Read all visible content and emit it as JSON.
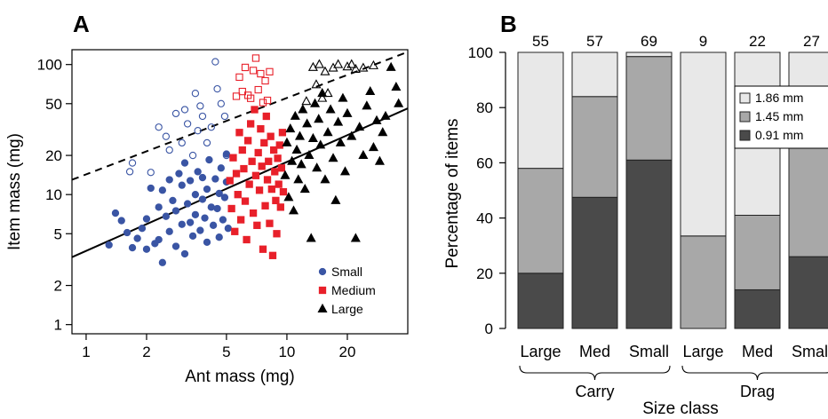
{
  "chart_data": [
    {
      "panel": "A",
      "type": "scatter",
      "xlabel": "Ant mass (mg)",
      "ylabel": "Item mass (mg)",
      "x_scale": "log",
      "y_scale": "log",
      "xlim": [
        0.85,
        40
      ],
      "ylim": [
        0.85,
        130
      ],
      "x_ticks": [
        1,
        2,
        5,
        10,
        20
      ],
      "x_tick_labels": [
        "1",
        "2",
        "5",
        "10",
        "20"
      ],
      "y_ticks": [
        1,
        2,
        5,
        10,
        20,
        50,
        100
      ],
      "y_tick_labels": [
        "1",
        "2",
        "5",
        "10",
        "20",
        "50",
        "100"
      ],
      "legend": {
        "placement": "bottom-right",
        "entries": [
          "Small",
          "Medium",
          "Large"
        ]
      },
      "colors": {
        "Small": "#3a55a4",
        "Medium": "#e8202a",
        "Large": "#000000"
      },
      "series": [
        {
          "name": "Small",
          "marker": "filled-circle",
          "points": [
            [
              1.3,
              4.1
            ],
            [
              1.4,
              7.2
            ],
            [
              1.5,
              6.3
            ],
            [
              1.6,
              5.1
            ],
            [
              1.7,
              3.9
            ],
            [
              1.8,
              4.6
            ],
            [
              1.9,
              5.5
            ],
            [
              2.0,
              3.8
            ],
            [
              2.0,
              6.5
            ],
            [
              2.1,
              11.2
            ],
            [
              2.2,
              4.2
            ],
            [
              2.3,
              8.0
            ],
            [
              2.3,
              4.5
            ],
            [
              2.4,
              10.8
            ],
            [
              2.4,
              3.0
            ],
            [
              2.5,
              6.8
            ],
            [
              2.6,
              5.2
            ],
            [
              2.6,
              13.0
            ],
            [
              2.7,
              9.0
            ],
            [
              2.8,
              4.0
            ],
            [
              2.8,
              7.5
            ],
            [
              2.9,
              14.5
            ],
            [
              3.0,
              5.9
            ],
            [
              3.0,
              11.8
            ],
            [
              3.1,
              3.5
            ],
            [
              3.1,
              17.5
            ],
            [
              3.2,
              8.5
            ],
            [
              3.3,
              6.1
            ],
            [
              3.3,
              12.8
            ],
            [
              3.4,
              4.8
            ],
            [
              3.5,
              10.0
            ],
            [
              3.5,
              7.0
            ],
            [
              3.6,
              15.0
            ],
            [
              3.7,
              5.3
            ],
            [
              3.8,
              9.2
            ],
            [
              3.8,
              13.5
            ],
            [
              3.9,
              6.6
            ],
            [
              4.0,
              4.3
            ],
            [
              4.0,
              11.0
            ],
            [
              4.1,
              18.5
            ],
            [
              4.2,
              8.0
            ],
            [
              4.3,
              5.8
            ],
            [
              4.4,
              13.2
            ],
            [
              4.5,
              7.8
            ],
            [
              4.6,
              10.2
            ],
            [
              4.6,
              4.7
            ],
            [
              4.7,
              16.0
            ],
            [
              4.8,
              6.4
            ],
            [
              4.9,
              9.5
            ],
            [
              5.0,
              12.5
            ],
            [
              5.0,
              20.5
            ],
            [
              5.1,
              5.5
            ]
          ]
        },
        {
          "name": "Small (open)",
          "marker": "open-circle",
          "points": [
            [
              1.7,
              17.5
            ],
            [
              1.65,
              15.0
            ],
            [
              2.1,
              14.8
            ],
            [
              2.3,
              33.0
            ],
            [
              2.5,
              28.0
            ],
            [
              2.6,
              22.0
            ],
            [
              2.8,
              42.0
            ],
            [
              3.0,
              25.0
            ],
            [
              3.1,
              45.0
            ],
            [
              3.2,
              35.0
            ],
            [
              3.4,
              20.0
            ],
            [
              3.5,
              60.0
            ],
            [
              3.6,
              31.0
            ],
            [
              3.7,
              48.0
            ],
            [
              3.8,
              40.0
            ],
            [
              4.0,
              25.0
            ],
            [
              4.2,
              33.0
            ],
            [
              4.4,
              105.0
            ],
            [
              4.5,
              65.0
            ],
            [
              4.7,
              50.0
            ],
            [
              4.9,
              40.0
            ],
            [
              5.0,
              20.0
            ]
          ]
        },
        {
          "name": "Medium",
          "marker": "filled-square",
          "points": [
            [
              5.2,
              12.8
            ],
            [
              5.3,
              7.8
            ],
            [
              5.4,
              19.2
            ],
            [
              5.5,
              5.2
            ],
            [
              5.6,
              14.5
            ],
            [
              5.7,
              10.0
            ],
            [
              5.8,
              30.0
            ],
            [
              5.9,
              6.4
            ],
            [
              6.0,
              22.0
            ],
            [
              6.1,
              15.8
            ],
            [
              6.2,
              8.9
            ],
            [
              6.3,
              4.5
            ],
            [
              6.4,
              26.0
            ],
            [
              6.5,
              12.0
            ],
            [
              6.6,
              35.0
            ],
            [
              6.7,
              18.0
            ],
            [
              6.8,
              7.2
            ],
            [
              6.9,
              45.0
            ],
            [
              7.0,
              14.0
            ],
            [
              7.1,
              5.8
            ],
            [
              7.2,
              21.0
            ],
            [
              7.3,
              10.8
            ],
            [
              7.4,
              32.0
            ],
            [
              7.5,
              16.5
            ],
            [
              7.6,
              3.8
            ],
            [
              7.7,
              25.0
            ],
            [
              7.8,
              8.2
            ],
            [
              7.9,
              40.0
            ],
            [
              8.0,
              13.0
            ],
            [
              8.1,
              18.0
            ],
            [
              8.2,
              6.0
            ],
            [
              8.3,
              28.0
            ],
            [
              8.4,
              11.0
            ],
            [
              8.5,
              3.4
            ],
            [
              8.6,
              22.0
            ],
            [
              8.7,
              15.0
            ],
            [
              8.8,
              9.0
            ],
            [
              8.9,
              5.0
            ],
            [
              9.0,
              19.0
            ],
            [
              9.1,
              12.0
            ],
            [
              9.2,
              24.0
            ],
            [
              9.3,
              8.0
            ],
            [
              9.4,
              16.0
            ],
            [
              9.5,
              30.0
            ],
            [
              9.6,
              10.5
            ]
          ]
        },
        {
          "name": "Medium (open)",
          "marker": "open-square",
          "points": [
            [
              5.6,
              57.0
            ],
            [
              5.8,
              80.0
            ],
            [
              6.0,
              62.0
            ],
            [
              6.2,
              95.0
            ],
            [
              6.4,
              58.0
            ],
            [
              6.6,
              55.0
            ],
            [
              6.8,
              90.0
            ],
            [
              7.0,
              112.0
            ],
            [
              7.2,
              64.0
            ],
            [
              7.4,
              85.0
            ],
            [
              7.6,
              51.0
            ],
            [
              7.8,
              75.0
            ],
            [
              8.0,
              53.0
            ],
            [
              8.2,
              88.0
            ]
          ]
        },
        {
          "name": "Large",
          "marker": "filled-triangle",
          "points": [
            [
              9.8,
              14.0
            ],
            [
              10.0,
              25.0
            ],
            [
              10.2,
              9.5
            ],
            [
              10.4,
              32.0
            ],
            [
              10.6,
              18.0
            ],
            [
              10.8,
              7.5
            ],
            [
              11.0,
              40.0
            ],
            [
              11.2,
              22.0
            ],
            [
              11.4,
              13.0
            ],
            [
              11.6,
              28.0
            ],
            [
              11.8,
              17.0
            ],
            [
              12.0,
              45.0
            ],
            [
              12.3,
              11.0
            ],
            [
              12.6,
              35.0
            ],
            [
              12.9,
              20.0
            ],
            [
              13.2,
              4.6
            ],
            [
              13.5,
              27.0
            ],
            [
              13.8,
              50.0
            ],
            [
              14.1,
              16.0
            ],
            [
              14.4,
              38.0
            ],
            [
              14.7,
              24.0
            ],
            [
              15.0,
              60.0
            ],
            [
              15.5,
              13.0
            ],
            [
              16.0,
              30.0
            ],
            [
              16.5,
              45.0
            ],
            [
              17.0,
              19.0
            ],
            [
              17.5,
              9.0
            ],
            [
              18.0,
              36.0
            ],
            [
              18.5,
              25.0
            ],
            [
              19.0,
              55.0
            ],
            [
              19.5,
              15.0
            ],
            [
              20.0,
              42.0
            ],
            [
              21.0,
              28.0
            ],
            [
              22.0,
              4.6
            ],
            [
              23.0,
              33.0
            ],
            [
              24.0,
              20.0
            ],
            [
              25.0,
              48.0
            ],
            [
              26.0,
              62.0
            ],
            [
              27.0,
              23.0
            ],
            [
              28.0,
              37.0
            ],
            [
              29.0,
              18.0
            ],
            [
              30.0,
              30.0
            ],
            [
              31.0,
              40.0
            ],
            [
              33.0,
              95.0
            ],
            [
              35.0,
              67.0
            ],
            [
              36.0,
              50.0
            ]
          ]
        },
        {
          "name": "Large (open)",
          "marker": "open-triangle",
          "points": [
            [
              12.5,
              52.0
            ],
            [
              13.5,
              95.0
            ],
            [
              14.0,
              70.0
            ],
            [
              14.5,
              100.0
            ],
            [
              15.0,
              55.0
            ],
            [
              15.5,
              88.0
            ],
            [
              16.0,
              60.0
            ],
            [
              17.0,
              94.0
            ],
            [
              18.0,
              100.0
            ],
            [
              20.0,
              96.0
            ],
            [
              21.0,
              100.0
            ],
            [
              22.0,
              92.0
            ],
            [
              24.0,
              94.0
            ],
            [
              27.0,
              98.0
            ]
          ]
        }
      ],
      "lines": [
        {
          "style": "solid",
          "x": [
            0.85,
            40
          ],
          "y": [
            3.3,
            46
          ]
        },
        {
          "style": "dashed",
          "x": [
            0.85,
            40
          ],
          "y": [
            13.0,
            125
          ]
        }
      ]
    },
    {
      "panel": "B",
      "type": "bar",
      "stacked": true,
      "categories": [
        "Large",
        "Med",
        "Small",
        "Large",
        "Med",
        "Small"
      ],
      "groups": [
        {
          "label": "Carry",
          "categories": [
            0,
            1,
            2
          ]
        },
        {
          "label": "Drag",
          "categories": [
            3,
            4,
            5
          ]
        }
      ],
      "counts": [
        "55",
        "57",
        "69",
        "9",
        "22",
        "27"
      ],
      "xlabel": "Size class",
      "ylabel": "Percentage of items",
      "ylim": [
        0,
        100
      ],
      "y_ticks": [
        0,
        20,
        40,
        60,
        80,
        100
      ],
      "legend": {
        "placement": "top-right",
        "entries": [
          "1.86 mm",
          "1.45 mm",
          "0.91 mm"
        ]
      },
      "series": [
        {
          "name": "0.91 mm",
          "color": "#4a4a4a",
          "values": [
            20,
            47.5,
            61,
            0,
            14,
            26
          ]
        },
        {
          "name": "1.45 mm",
          "color": "#a8a8a8",
          "values": [
            38,
            36.5,
            37.5,
            33.5,
            27,
            41
          ]
        },
        {
          "name": "1.86 mm",
          "color": "#e8e8e8",
          "values": [
            42,
            16,
            1.5,
            66.5,
            59,
            33
          ]
        }
      ]
    }
  ]
}
